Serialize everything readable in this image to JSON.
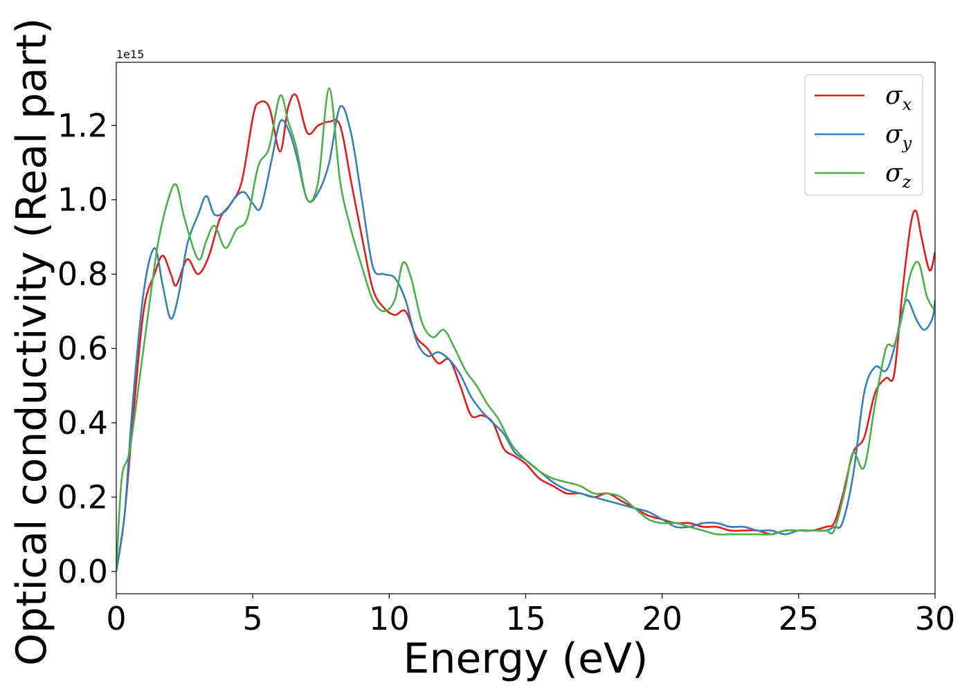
{
  "chart_data": {
    "type": "line",
    "xlabel": "Energy (eV)",
    "ylabel": "Optical conductivity (Real part)",
    "y_offset_label": "1e15",
    "xlim": [
      0,
      30
    ],
    "ylim": [
      -0.06,
      1.37
    ],
    "x_ticks": [
      0,
      5,
      10,
      15,
      20,
      25,
      30
    ],
    "x_tick_labels": [
      "0",
      "5",
      "10",
      "15",
      "20",
      "25",
      "30"
    ],
    "y_ticks": [
      0.0,
      0.2,
      0.4,
      0.6,
      0.8,
      1.0,
      1.2
    ],
    "y_tick_labels": [
      "0.0",
      "0.2",
      "0.4",
      "0.6",
      "0.8",
      "1.0",
      "1.2"
    ],
    "grid": false,
    "legend_position": "top-right",
    "series": [
      {
        "name": "σx",
        "legend_symbol": "σ",
        "legend_subscript": "x",
        "color": "#e41a1c",
        "x": [
          0,
          0.3,
          0.6,
          1.0,
          1.4,
          1.7,
          2.0,
          2.2,
          2.6,
          3.0,
          3.4,
          3.8,
          4.2,
          4.6,
          5.0,
          5.2,
          5.6,
          6.0,
          6.3,
          6.6,
          7.0,
          7.4,
          7.8,
          8.2,
          8.6,
          9.0,
          9.4,
          9.8,
          10.2,
          10.6,
          11.0,
          11.4,
          11.8,
          12.2,
          12.6,
          13.0,
          13.4,
          13.8,
          14.2,
          14.6,
          15.0,
          15.5,
          16.0,
          16.5,
          17.0,
          17.5,
          18.0,
          18.5,
          19.0,
          19.5,
          20.0,
          20.5,
          21.0,
          21.5,
          22.0,
          22.5,
          23.0,
          23.5,
          24.0,
          24.5,
          25.0,
          25.5,
          26.0,
          26.3,
          26.6,
          27.0,
          27.4,
          27.8,
          28.2,
          28.5,
          28.8,
          29.1,
          29.3,
          29.5,
          29.8,
          30.0
        ],
        "values": [
          0,
          0.15,
          0.4,
          0.7,
          0.8,
          0.85,
          0.8,
          0.77,
          0.84,
          0.8,
          0.85,
          0.95,
          0.99,
          1.05,
          1.22,
          1.26,
          1.25,
          1.13,
          1.25,
          1.28,
          1.18,
          1.2,
          1.21,
          1.2,
          1.05,
          0.9,
          0.76,
          0.71,
          0.69,
          0.7,
          0.63,
          0.6,
          0.56,
          0.57,
          0.5,
          0.42,
          0.42,
          0.4,
          0.33,
          0.31,
          0.29,
          0.25,
          0.23,
          0.21,
          0.21,
          0.2,
          0.21,
          0.19,
          0.17,
          0.15,
          0.14,
          0.13,
          0.13,
          0.12,
          0.12,
          0.11,
          0.11,
          0.11,
          0.1,
          0.11,
          0.11,
          0.11,
          0.12,
          0.13,
          0.2,
          0.32,
          0.36,
          0.48,
          0.52,
          0.53,
          0.75,
          0.93,
          0.97,
          0.9,
          0.81,
          0.86
        ]
      },
      {
        "name": "σy",
        "legend_symbol": "σ",
        "legend_subscript": "y",
        "color": "#377eb8",
        "x": [
          0,
          0.3,
          0.6,
          1.0,
          1.4,
          1.7,
          2.0,
          2.3,
          2.6,
          3.0,
          3.3,
          3.6,
          4.0,
          4.4,
          4.7,
          5.0,
          5.3,
          5.7,
          6.0,
          6.3,
          6.6,
          7.0,
          7.4,
          7.8,
          8.2,
          8.6,
          9.0,
          9.4,
          9.8,
          10.2,
          10.6,
          11.0,
          11.4,
          11.8,
          12.2,
          12.6,
          13.0,
          13.4,
          13.8,
          14.2,
          14.6,
          15.0,
          15.5,
          16.0,
          16.5,
          17.0,
          17.5,
          18.0,
          18.5,
          19.0,
          19.5,
          20.0,
          20.5,
          21.0,
          21.5,
          22.0,
          22.5,
          23.0,
          23.5,
          24.0,
          24.5,
          25.0,
          25.5,
          26.0,
          26.3,
          26.6,
          27.0,
          27.4,
          27.8,
          28.2,
          28.5,
          28.8,
          29.0,
          29.3,
          29.6,
          29.9,
          30.0
        ],
        "values": [
          0,
          0.15,
          0.45,
          0.75,
          0.87,
          0.77,
          0.68,
          0.75,
          0.88,
          0.96,
          1.01,
          0.96,
          0.97,
          1.01,
          1.02,
          0.99,
          0.98,
          1.11,
          1.21,
          1.19,
          1.12,
          1.0,
          1.02,
          1.1,
          1.25,
          1.18,
          1.0,
          0.82,
          0.8,
          0.79,
          0.73,
          0.62,
          0.58,
          0.59,
          0.57,
          0.53,
          0.47,
          0.43,
          0.4,
          0.37,
          0.32,
          0.3,
          0.27,
          0.24,
          0.22,
          0.21,
          0.2,
          0.19,
          0.18,
          0.17,
          0.16,
          0.14,
          0.12,
          0.12,
          0.13,
          0.13,
          0.12,
          0.12,
          0.11,
          0.11,
          0.1,
          0.11,
          0.11,
          0.11,
          0.12,
          0.13,
          0.26,
          0.48,
          0.55,
          0.54,
          0.6,
          0.7,
          0.73,
          0.68,
          0.65,
          0.68,
          0.73
        ]
      },
      {
        "name": "σz",
        "legend_symbol": "σ",
        "legend_subscript": "z",
        "color": "#4daf4a",
        "x": [
          0,
          0.2,
          0.5,
          1.0,
          1.5,
          1.9,
          2.2,
          2.5,
          3.0,
          3.3,
          3.6,
          4.0,
          4.4,
          4.8,
          5.2,
          5.6,
          6.0,
          6.3,
          6.6,
          7.0,
          7.4,
          7.8,
          8.2,
          8.6,
          9.0,
          9.4,
          9.8,
          10.2,
          10.5,
          10.8,
          11.2,
          11.6,
          12.0,
          12.4,
          12.8,
          13.2,
          13.6,
          14.0,
          14.5,
          15.0,
          15.5,
          16.0,
          16.5,
          17.0,
          17.5,
          18.0,
          18.5,
          19.0,
          19.5,
          20.0,
          20.5,
          21.0,
          21.5,
          22.0,
          22.5,
          23.0,
          23.5,
          24.0,
          24.5,
          25.0,
          25.5,
          26.0,
          26.3,
          26.7,
          27.0,
          27.4,
          27.8,
          28.2,
          28.5,
          28.8,
          29.1,
          29.4,
          29.7,
          30.0
        ],
        "values": [
          0,
          0.25,
          0.33,
          0.6,
          0.87,
          1.0,
          1.04,
          0.95,
          0.84,
          0.89,
          0.93,
          0.87,
          0.92,
          0.95,
          1.09,
          1.14,
          1.28,
          1.21,
          1.14,
          1.0,
          1.05,
          1.3,
          1.05,
          0.92,
          0.82,
          0.73,
          0.7,
          0.73,
          0.83,
          0.79,
          0.67,
          0.63,
          0.65,
          0.6,
          0.54,
          0.5,
          0.45,
          0.41,
          0.34,
          0.3,
          0.27,
          0.25,
          0.24,
          0.23,
          0.21,
          0.21,
          0.2,
          0.17,
          0.14,
          0.13,
          0.13,
          0.12,
          0.11,
          0.1,
          0.1,
          0.1,
          0.1,
          0.1,
          0.11,
          0.11,
          0.11,
          0.11,
          0.11,
          0.22,
          0.32,
          0.28,
          0.45,
          0.6,
          0.61,
          0.69,
          0.8,
          0.83,
          0.74,
          0.7
        ]
      }
    ]
  }
}
